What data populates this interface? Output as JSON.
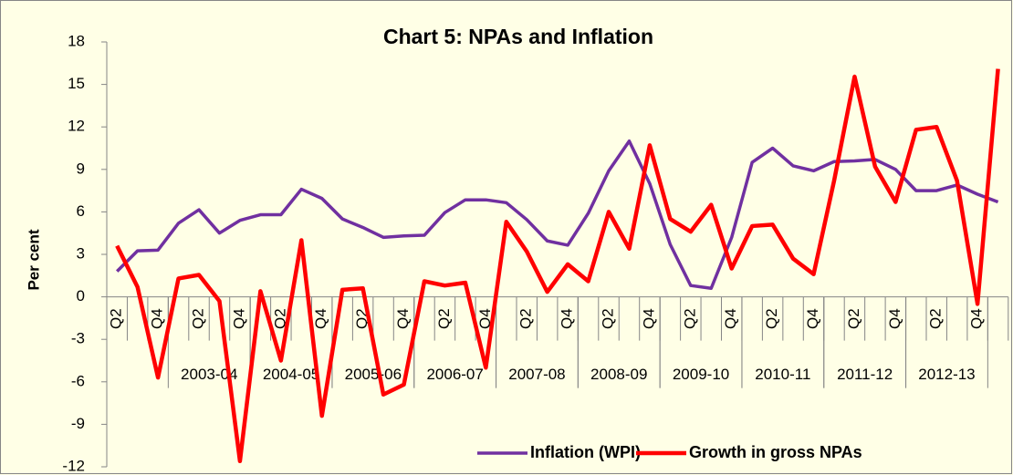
{
  "chart_data": {
    "type": "line",
    "title": "Chart 5:  NPAs and Inflation",
    "y_label": "Per cent",
    "categories": [
      "Q2",
      null,
      "Q4",
      null,
      "Q2",
      null,
      "Q4",
      null,
      "Q2",
      null,
      "Q4",
      null,
      "Q2",
      null,
      "Q4",
      null,
      "Q2",
      null,
      "Q4",
      null,
      "Q2",
      null,
      "Q4",
      null,
      "Q2",
      null,
      "Q4",
      null,
      "Q2",
      null,
      "Q4",
      null,
      "Q2",
      null,
      "Q4",
      null,
      "Q2",
      null,
      "Q4",
      null,
      "Q2",
      null,
      "Q4",
      null
    ],
    "groups": [
      {
        "name": "2003-04",
        "start": 3,
        "count": 4
      },
      {
        "name": "2004-05",
        "start": 7,
        "count": 4
      },
      {
        "name": "2005-06",
        "start": 11,
        "count": 4
      },
      {
        "name": "2006-07",
        "start": 15,
        "count": 4
      },
      {
        "name": "2007-08",
        "start": 19,
        "count": 4
      },
      {
        "name": "2008-09",
        "start": 23,
        "count": 4
      },
      {
        "name": "2009-10",
        "start": 27,
        "count": 4
      },
      {
        "name": "2010-11",
        "start": 31,
        "count": 4
      },
      {
        "name": "2011-12",
        "start": 35,
        "count": 4
      },
      {
        "name": "2012-13",
        "start": 39,
        "count": 4
      }
    ],
    "series": [
      {
        "name": "Inflation (WPI)",
        "color": "#7030A0",
        "values": [
          1.8,
          3.25,
          3.3,
          5.2,
          6.15,
          4.5,
          5.4,
          5.8,
          5.8,
          7.6,
          6.95,
          5.5,
          4.9,
          4.2,
          4.3,
          4.35,
          5.95,
          6.85,
          6.85,
          6.65,
          5.45,
          3.95,
          3.65,
          5.9,
          8.9,
          11.0,
          8.0,
          3.7,
          0.8,
          0.6,
          4.2,
          9.5,
          10.5,
          9.25,
          8.9,
          9.55,
          9.6,
          9.7,
          9.0,
          7.5,
          7.5,
          7.9,
          7.25,
          6.7
        ]
      },
      {
        "name": "Growth in gross NPAs",
        "color": "#FF0000",
        "values": [
          3.6,
          0.7,
          -5.7,
          1.3,
          1.55,
          -0.3,
          -11.6,
          0.4,
          -4.5,
          4.0,
          -8.4,
          0.5,
          0.6,
          -6.9,
          -6.2,
          1.1,
          0.8,
          1.0,
          -5.0,
          5.3,
          3.2,
          0.35,
          2.3,
          1.1,
          6.0,
          3.4,
          10.7,
          5.5,
          4.6,
          6.5,
          2.0,
          5.0,
          5.1,
          2.7,
          1.6,
          8.2,
          15.55,
          9.2,
          6.7,
          11.8,
          12.0,
          8.2,
          -0.5,
          16.1
        ]
      }
    ],
    "ylim": [
      -12,
      18
    ],
    "yticks": [
      -12,
      -9,
      -6,
      -3,
      0,
      3,
      6,
      9,
      12,
      15,
      18
    ],
    "legend": "bottom-right"
  }
}
